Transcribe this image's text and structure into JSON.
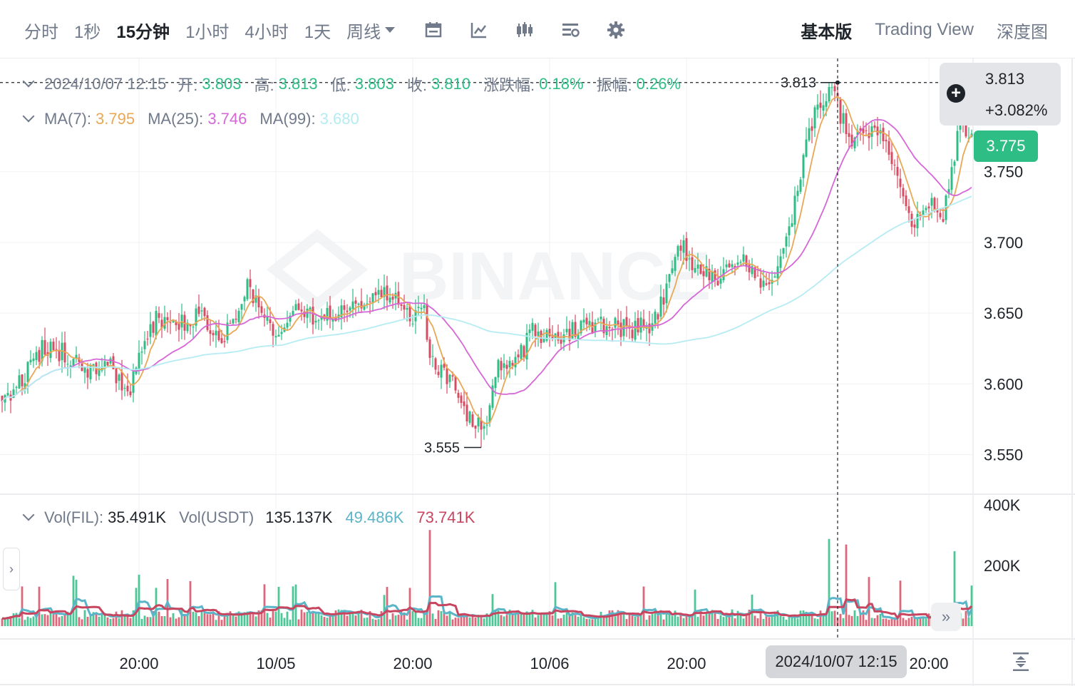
{
  "toolbar": {
    "intervals": [
      "分时",
      "1秒",
      "15分钟",
      "1小时",
      "4小时",
      "1天",
      "周线"
    ],
    "active_interval": "15分钟",
    "views": [
      "基本版",
      "Trading View",
      "深度图"
    ],
    "active_view": "基本版",
    "icons": [
      "calendar-icon",
      "indicator-icon",
      "candle-type-icon",
      "layout-settings-icon",
      "gear-icon"
    ]
  },
  "ohlc_legend": {
    "datetime": "2024/10/07 12:15",
    "open_label": "开:",
    "open": "3.803",
    "high_label": "高:",
    "high": "3.813",
    "low_label": "低:",
    "low": "3.803",
    "close_label": "收:",
    "close": "3.810",
    "change_label": "涨跌幅:",
    "change": "0.18%",
    "amplitude_label": "振幅:",
    "amplitude": "0.26%"
  },
  "ma_legend": {
    "ma7_label": "MA(7):",
    "ma7": "3.795",
    "ma25_label": "MA(25):",
    "ma25": "3.746",
    "ma99_label": "MA(99):",
    "ma99": "3.680"
  },
  "vol_legend": {
    "vol_fil_label": "Vol(FIL):",
    "vol_fil": "35.491K",
    "vol_usdt_label": "Vol(USDT)",
    "vol_usdt": "135.137K",
    "vol_ma1": "49.486K",
    "vol_ma2": "73.741K"
  },
  "price_tag": {
    "price": "3.813",
    "change": "+3.082%"
  },
  "last_price": "3.775",
  "crosshair_time": "2024/10/07 12:15",
  "watermark": "BINANCE",
  "colors": {
    "up": "#2ebd85",
    "down": "#d54d63",
    "ma7": "#e8a856",
    "ma25": "#d667d6",
    "ma99": "#b5ecf3",
    "vol_ma1": "#5ab5c8",
    "vol_ma2": "#c8455f"
  },
  "chart_data": {
    "type": "candlestick",
    "interval": "15m",
    "price_axis_ticks": [
      "3.750",
      "3.700",
      "3.650",
      "3.600",
      "3.550"
    ],
    "price_ylim": [
      3.522,
      3.83
    ],
    "volume_axis_ticks": [
      "400K",
      "200K"
    ],
    "volume_ylim": [
      0,
      430000
    ],
    "time_axis_ticks": [
      {
        "label": "20:00",
        "bar": 48
      },
      {
        "label": "10/05",
        "bar": 96
      },
      {
        "label": "20:00",
        "bar": 144
      },
      {
        "label": "10/06",
        "bar": 192
      },
      {
        "label": "20:00",
        "bar": 240
      },
      {
        "label": "20:00",
        "bar": 325
      }
    ],
    "crosshair_bar": 293,
    "crosshair_price": 3.813,
    "bar_count": 341,
    "annotations": [
      {
        "label": "3.813",
        "bar": 293,
        "price": 3.813,
        "type": "high"
      },
      {
        "label": "3.555",
        "bar": 168,
        "price": 3.555,
        "type": "low"
      }
    ],
    "close_anchors": [
      [
        0,
        3.585
      ],
      [
        6,
        3.6
      ],
      [
        14,
        3.625
      ],
      [
        22,
        3.622
      ],
      [
        30,
        3.608
      ],
      [
        38,
        3.614
      ],
      [
        44,
        3.588
      ],
      [
        48,
        3.62
      ],
      [
        54,
        3.646
      ],
      [
        62,
        3.642
      ],
      [
        70,
        3.648
      ],
      [
        78,
        3.632
      ],
      [
        86,
        3.668
      ],
      [
        92,
        3.648
      ],
      [
        96,
        3.63
      ],
      [
        102,
        3.655
      ],
      [
        112,
        3.645
      ],
      [
        120,
        3.653
      ],
      [
        128,
        3.662
      ],
      [
        137,
        3.664
      ],
      [
        144,
        3.646
      ],
      [
        148,
        3.652
      ],
      [
        150,
        3.615
      ],
      [
        156,
        3.605
      ],
      [
        160,
        3.592
      ],
      [
        166,
        3.567
      ],
      [
        170,
        3.578
      ],
      [
        174,
        3.61
      ],
      [
        180,
        3.612
      ],
      [
        186,
        3.638
      ],
      [
        194,
        3.63
      ],
      [
        202,
        3.64
      ],
      [
        210,
        3.642
      ],
      [
        220,
        3.638
      ],
      [
        228,
        3.642
      ],
      [
        234,
        3.672
      ],
      [
        238,
        3.698
      ],
      [
        244,
        3.68
      ],
      [
        252,
        3.672
      ],
      [
        258,
        3.69
      ],
      [
        264,
        3.676
      ],
      [
        268,
        3.664
      ],
      [
        272,
        3.682
      ],
      [
        276,
        3.706
      ],
      [
        280,
        3.748
      ],
      [
        284,
        3.785
      ],
      [
        288,
        3.8
      ],
      [
        292,
        3.806
      ],
      [
        294,
        3.79
      ],
      [
        298,
        3.77
      ],
      [
        304,
        3.778
      ],
      [
        310,
        3.775
      ],
      [
        314,
        3.742
      ],
      [
        318,
        3.718
      ],
      [
        322,
        3.712
      ],
      [
        326,
        3.728
      ],
      [
        330,
        3.718
      ],
      [
        334,
        3.76
      ],
      [
        336,
        3.79
      ],
      [
        338,
        3.77
      ],
      [
        340,
        3.775
      ]
    ],
    "ma_series": [
      {
        "name": "MA(7)",
        "color": "#e8a856",
        "window": 7
      },
      {
        "name": "MA(25)",
        "color": "#d667d6",
        "window": 25
      },
      {
        "name": "MA(99)",
        "color": "#b5ecf3",
        "window": 99
      }
    ]
  }
}
